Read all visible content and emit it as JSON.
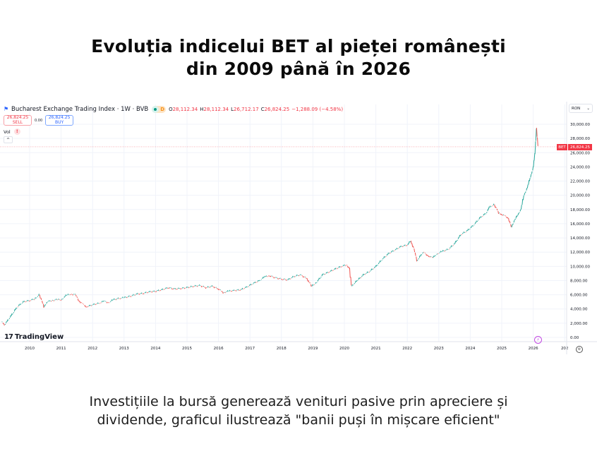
{
  "page": {
    "title_line1": "Evoluția indicelui BET al pieței românești",
    "title_line2": "din 2009 până în 2026",
    "caption_line1": "Investițiile la bursă generează venituri pasive prin apreciere și",
    "caption_line2": "dividende, graficul ilustrează \"banii puși în mișcare eficient\""
  },
  "chart_header": {
    "symbol_icon": "flag-icon",
    "symbol_title": "Bucharest Exchange Trading Index · 1W · BVB",
    "status_letter": "D",
    "open_label": "O",
    "open": "28,112.34",
    "high_label": "H",
    "high": "28,112.34",
    "low_label": "L",
    "low": "26,712.17",
    "close_label": "C",
    "close": "26,824.25",
    "change": "−1,288.09 (−4.58%)"
  },
  "trade": {
    "sell_price": "26,824.25",
    "sell_label": "SELL",
    "spread": "0.00",
    "buy_price": "26,824.25",
    "buy_label": "BUY"
  },
  "volume": {
    "label": "Vol",
    "warning": "!"
  },
  "collapse": {
    "glyph": "^"
  },
  "price_axis": {
    "currency": "RON",
    "currency_arrow": "⌄",
    "symbol_tag": "BET",
    "last_price_tag": "26,824.25"
  },
  "branding": {
    "logo_mark": "17",
    "logo_text": "TradingView"
  },
  "icons": {
    "lightning": "⚡",
    "settings": "⚙"
  },
  "colors": {
    "up": "#26a69a",
    "down": "#ef5350",
    "last_price": "#f23645",
    "grid": "#f0f3fa",
    "axis_text": "#131722"
  },
  "chart_data": {
    "type": "line",
    "title": "Bucharest Exchange Trading Index · 1W · BVB",
    "xlabel": "",
    "ylabel": "RON",
    "x_tick_labels": [
      "2010",
      "2011",
      "2012",
      "2013",
      "2014",
      "2015",
      "2016",
      "2017",
      "2018",
      "2019",
      "2020",
      "2021",
      "2022",
      "2023",
      "2024",
      "2025",
      "2026",
      "202"
    ],
    "y_tick_labels": [
      "30,000.00",
      "28,000.00",
      "26,000.00",
      "24,000.00",
      "22,000.00",
      "20,000.00",
      "18,000.00",
      "16,000.00",
      "14,000.00",
      "12,000.00",
      "10,000.00",
      "8,000.00",
      "6,000.00",
      "4,000.00",
      "2,000.00",
      "0.00"
    ],
    "ylim": [
      0,
      30000
    ],
    "xlim": [
      2009.1,
      2027.1
    ],
    "grid": true,
    "legend_position": "top-left",
    "series": [
      {
        "name": "BET",
        "x": [
          2009.1,
          2009.2,
          2009.4,
          2009.6,
          2009.8,
          2010.0,
          2010.15,
          2010.3,
          2010.45,
          2010.55,
          2010.7,
          2010.85,
          2011.0,
          2011.15,
          2011.3,
          2011.45,
          2011.55,
          2011.65,
          2011.8,
          2012.0,
          2012.2,
          2012.35,
          2012.5,
          2012.65,
          2012.85,
          2013.0,
          2013.2,
          2013.4,
          2013.6,
          2013.8,
          2014.0,
          2014.2,
          2014.4,
          2014.6,
          2014.8,
          2015.0,
          2015.2,
          2015.4,
          2015.6,
          2015.8,
          2016.0,
          2016.15,
          2016.3,
          2016.5,
          2016.7,
          2016.9,
          2017.1,
          2017.3,
          2017.45,
          2017.6,
          2017.8,
          2018.0,
          2018.2,
          2018.4,
          2018.6,
          2018.8,
          2018.95,
          2019.1,
          2019.3,
          2019.5,
          2019.7,
          2019.9,
          2020.05,
          2020.15,
          2020.22,
          2020.4,
          2020.6,
          2020.8,
          2021.0,
          2021.2,
          2021.4,
          2021.6,
          2021.8,
          2022.0,
          2022.1,
          2022.2,
          2022.3,
          2022.5,
          2022.65,
          2022.8,
          2022.95,
          2023.1,
          2023.3,
          2023.5,
          2023.7,
          2023.9,
          2024.1,
          2024.3,
          2024.5,
          2024.6,
          2024.75,
          2024.9,
          2025.0,
          2025.1,
          2025.2,
          2025.3,
          2025.4,
          2025.5,
          2025.6,
          2025.7,
          2025.8,
          2025.9,
          2026.0,
          2026.05,
          2026.1,
          2026.15
        ],
        "values": [
          2200,
          1800,
          3000,
          4300,
          5000,
          5200,
          5400,
          6000,
          4300,
          5000,
          5200,
          5300,
          5300,
          5900,
          6100,
          6000,
          5200,
          4800,
          4300,
          4600,
          4800,
          5100,
          4900,
          5300,
          5500,
          5600,
          5800,
          6100,
          6200,
          6400,
          6500,
          6700,
          7000,
          6800,
          6900,
          7000,
          7200,
          7300,
          7000,
          7200,
          6800,
          6300,
          6500,
          6600,
          6700,
          7100,
          7600,
          8000,
          8500,
          8700,
          8400,
          8200,
          8100,
          8600,
          8800,
          8300,
          7200,
          7700,
          8800,
          9200,
          9600,
          10000,
          10200,
          9800,
          7200,
          8000,
          8800,
          9300,
          10000,
          11000,
          11800,
          12300,
          12800,
          13000,
          13600,
          12500,
          10800,
          12000,
          11500,
          11200,
          11800,
          12100,
          12400,
          13200,
          14500,
          15000,
          15800,
          16800,
          17500,
          18300,
          18700,
          17500,
          17300,
          17100,
          16800,
          15500,
          16500,
          17200,
          18000,
          20000,
          21000,
          22500,
          24000,
          25800,
          29500,
          26824
        ]
      }
    ],
    "last_value": 26824.25
  }
}
